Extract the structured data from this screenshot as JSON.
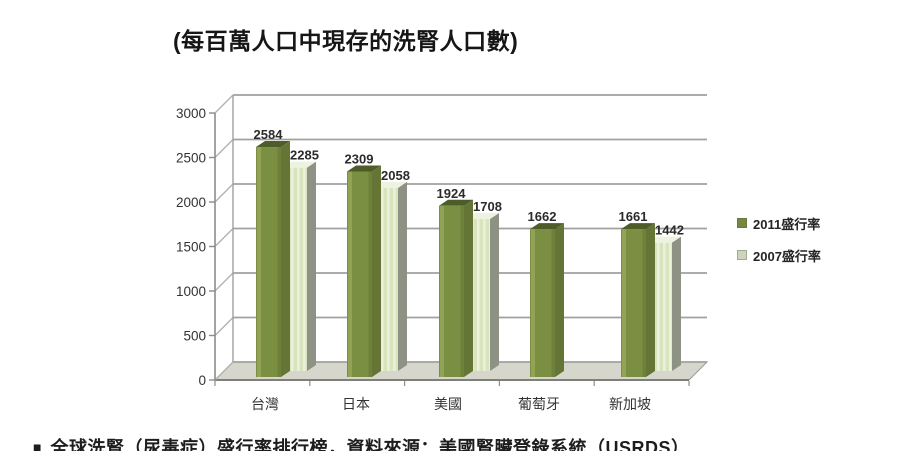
{
  "title": "(每百萬人口中現存的洗腎人口數)",
  "chart_data": {
    "type": "bar",
    "projection": "3d",
    "title": "(每百萬人口中現存的洗腎人口數)",
    "categories": [
      "台灣",
      "日本",
      "美國",
      "葡萄牙",
      "新加坡"
    ],
    "series": [
      {
        "name": "2011盛行率",
        "values": [
          2584,
          2309,
          1924,
          1662,
          1661
        ],
        "color": "#7b8f42"
      },
      {
        "name": "2007盛行率",
        "values": [
          2285,
          2058,
          1708,
          null,
          1442
        ],
        "color": "#dce6c4"
      }
    ],
    "ylim": [
      0,
      3000
    ],
    "yticks": [
      0,
      500,
      1000,
      1500,
      2000,
      2500,
      3000
    ],
    "grid": true,
    "legend_position": "right",
    "value_labels": true
  },
  "legend": {
    "items": [
      {
        "label": "2011盛行率",
        "color": "#76883d"
      },
      {
        "label": "2007盛行率",
        "color": "#ccd4ba"
      }
    ]
  },
  "footer": {
    "bullet": "■",
    "text": "全球洗腎（尿毒症）盛行率排行榜，資料來源：美國腎臟登錄系統（USRDS）"
  },
  "colors": {
    "bar_2011_front": "#7b8f42",
    "bar_2011_highlight": "#96a759",
    "bar_2011_shade": "#6b7d38",
    "bar_2011_top": "#4d5c28",
    "bar_2011_side": "#647536",
    "bar_2007_front": "#d9e4bf",
    "bar_2007_stripe": "#eaf0da",
    "bar_2007_top": "#eef3e1",
    "bar_2007_side": "#8d9284",
    "gridline": "#a0a09e",
    "axis": "#8c8c8a",
    "floor": "#d6d6cd",
    "floor_edge": "#7e7e7a",
    "label_text": "#2b2b2b",
    "tick_text": "#333333"
  }
}
